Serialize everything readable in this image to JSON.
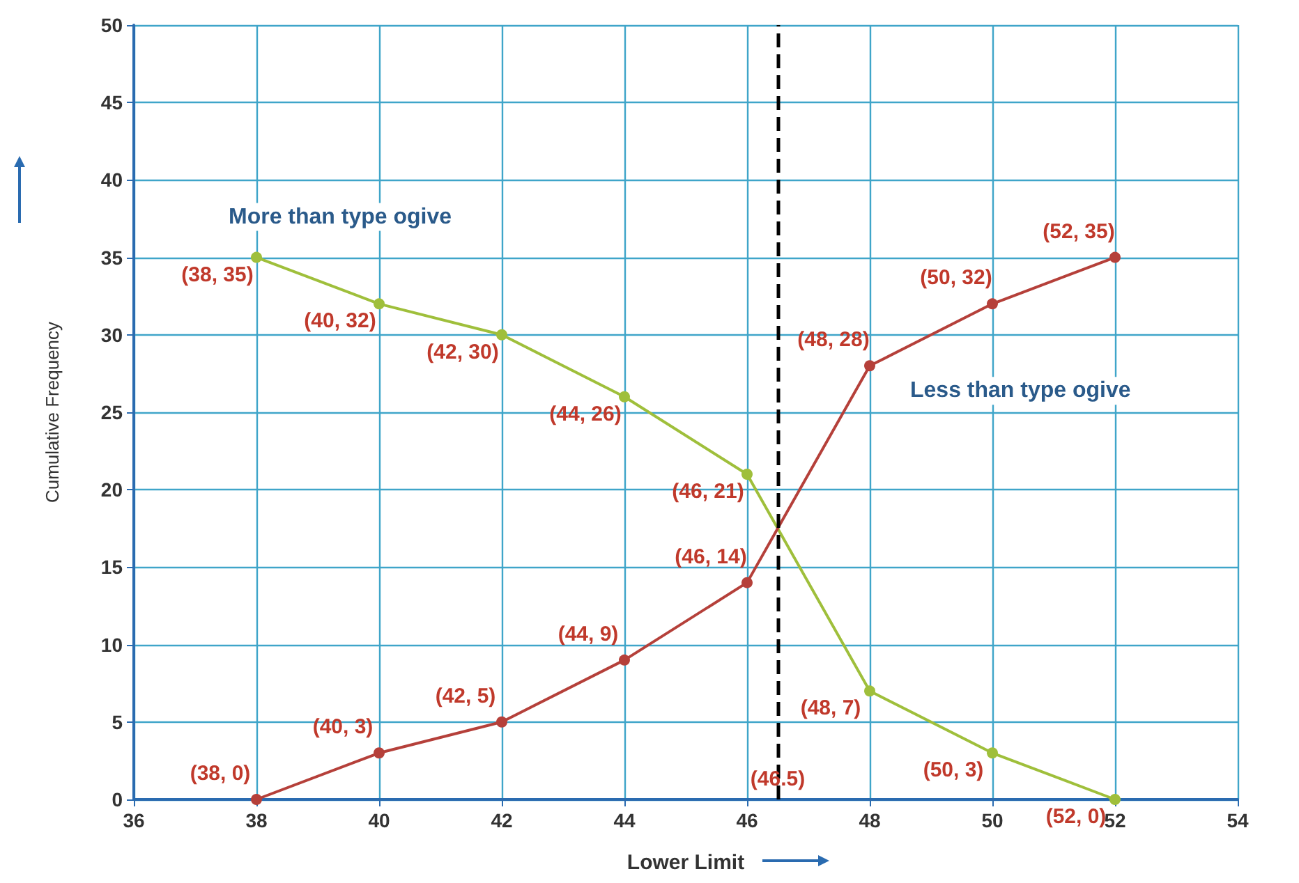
{
  "chart_data": {
    "type": "line",
    "xlabel": "Lower Limit",
    "ylabel": "Cumulative Frequency",
    "x": [
      38,
      40,
      42,
      44,
      46,
      48,
      50,
      52
    ],
    "series": [
      {
        "name": "More than type ogive",
        "color": "#9fbf3b",
        "values": [
          35,
          32,
          30,
          26,
          21,
          7,
          3,
          0
        ],
        "value_labels": [
          "(38, 35)",
          "(40, 32)",
          "(42, 30)",
          "(44, 26)",
          "(46, 21)",
          "(48, 7)",
          "(50, 3)",
          "(52, 0)"
        ]
      },
      {
        "name": "Less than type ogive",
        "color": "#b5403a",
        "values": [
          0,
          3,
          5,
          9,
          14,
          28,
          32,
          35
        ],
        "value_labels": [
          "(38, 0)",
          "(40, 3)",
          "(42, 5)",
          "(44, 9)",
          "(46, 14)",
          "(48, 28)",
          "(50, 32)",
          "(52, 35)"
        ]
      }
    ],
    "xlim": [
      36,
      54
    ],
    "xticks": [
      36,
      38,
      40,
      42,
      44,
      46,
      48,
      50,
      52,
      54
    ],
    "ylim": [
      0,
      50
    ],
    "yticks": [
      0,
      5,
      10,
      15,
      20,
      25,
      30,
      35,
      40,
      45,
      50
    ],
    "ref_lines": [
      {
        "axis": "x",
        "value": 46.5,
        "label": "(46.5)",
        "color": "#000000",
        "line_style": "dashed"
      }
    ],
    "grid": true,
    "legend": false,
    "marker": "circle",
    "line_style": "solid"
  }
}
